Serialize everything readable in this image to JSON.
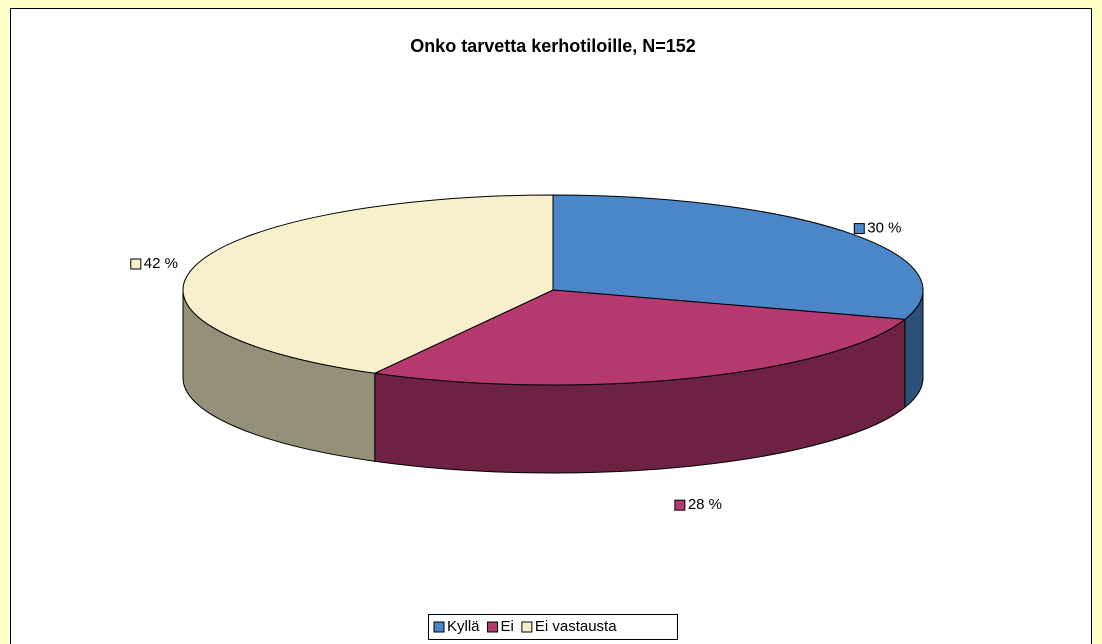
{
  "chart_data": {
    "type": "pie3d",
    "title": "Onko tarvetta kerhotiloille, N=152",
    "categories": [
      "Kyllä",
      "Ei",
      "Ei vastausta"
    ],
    "values": [
      30,
      28,
      42
    ],
    "value_labels": [
      "30 %",
      "28 %",
      "42 %"
    ],
    "colors": [
      "#4a86c8",
      "#b5396f",
      "#f8f0cc"
    ],
    "legend": "bottom"
  }
}
